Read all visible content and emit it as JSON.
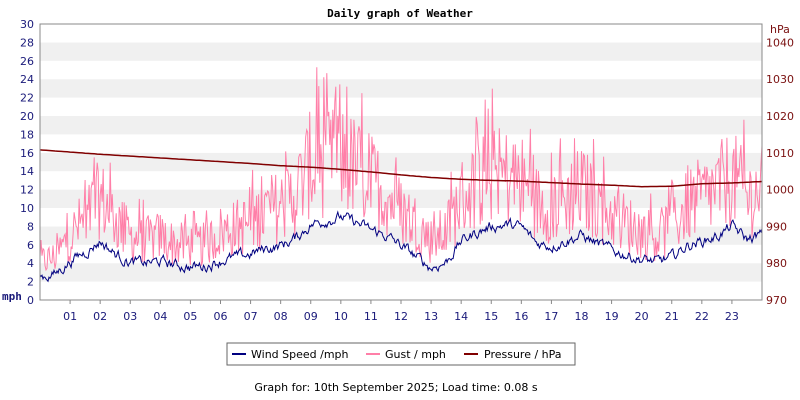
{
  "chart_data": {
    "type": "line",
    "title": "Daily graph of Weather",
    "left_axis": {
      "unit": "mph",
      "ylim": [
        0,
        30
      ],
      "ticks": [
        0,
        2,
        4,
        6,
        8,
        10,
        12,
        14,
        16,
        18,
        20,
        22,
        24,
        26,
        28,
        30
      ]
    },
    "right_axis": {
      "unit": "hPa",
      "ylim": [
        970,
        1045
      ],
      "ticks": [
        970,
        980,
        990,
        1000,
        1010,
        1020,
        1030,
        1040
      ]
    },
    "x_axis": {
      "range_hours": [
        0,
        24
      ],
      "tick_labels": [
        "01",
        "02",
        "03",
        "04",
        "05",
        "06",
        "07",
        "08",
        "09",
        "10",
        "11",
        "12",
        "13",
        "14",
        "15",
        "16",
        "17",
        "18",
        "19",
        "20",
        "21",
        "22",
        "23"
      ]
    },
    "grid": "horizontal-bands",
    "legend_position": "bottom",
    "series": [
      {
        "name": "Wind Speed /mph",
        "axis": "left",
        "color": "#000080",
        "x_hours": [
          0,
          0.5,
          1,
          1.5,
          2,
          2.5,
          3,
          3.5,
          4,
          4.5,
          5,
          5.5,
          6,
          6.5,
          7,
          7.5,
          8,
          8.5,
          9,
          9.5,
          10,
          10.5,
          11,
          11.5,
          12,
          12.5,
          13,
          13.5,
          14,
          14.5,
          15,
          15.5,
          16,
          16.5,
          17,
          17.5,
          18,
          18.5,
          19,
          19.5,
          20,
          20.5,
          21,
          21.5,
          22,
          22.5,
          23,
          23.5,
          24
        ],
        "values": [
          2.5,
          2.8,
          4.2,
          5.2,
          6.4,
          5.0,
          4.1,
          4.0,
          4.2,
          3.8,
          3.6,
          3.7,
          4.3,
          4.6,
          5.0,
          5.6,
          5.9,
          6.7,
          8.2,
          8.7,
          9.0,
          8.4,
          7.6,
          7.0,
          5.9,
          4.7,
          3.5,
          4.1,
          6.4,
          7.3,
          8.0,
          8.2,
          7.9,
          6.2,
          5.9,
          6.5,
          7.0,
          6.2,
          5.4,
          4.9,
          4.4,
          4.1,
          4.6,
          5.9,
          6.4,
          6.9,
          8.0,
          6.6,
          7.1
        ]
      },
      {
        "name": "Gust / mph",
        "axis": "left",
        "color": "#ff7fa8",
        "x_hours": [
          0,
          0.5,
          1,
          1.5,
          2,
          2.5,
          3,
          3.5,
          4,
          4.5,
          5,
          5.5,
          6,
          6.5,
          7,
          7.5,
          8,
          8.5,
          9,
          9.5,
          10,
          10.5,
          11,
          11.5,
          12,
          12.5,
          13,
          13.5,
          14,
          14.5,
          15,
          15.5,
          16,
          16.5,
          17,
          17.5,
          18,
          18.5,
          19,
          19.5,
          20,
          20.5,
          21,
          21.5,
          22,
          22.5,
          23,
          23.5,
          24
        ],
        "values": [
          4.5,
          5.0,
          7.5,
          9.5,
          12.0,
          9.5,
          7.5,
          7.0,
          7.5,
          6.5,
          6.5,
          6.5,
          8.0,
          8.5,
          9.0,
          10.5,
          11.0,
          12.5,
          16.0,
          16.0,
          16.5,
          15.5,
          14.0,
          12.5,
          10.5,
          9.0,
          7.0,
          8.0,
          12.0,
          13.5,
          15.0,
          14.5,
          14.0,
          11.5,
          11.0,
          12.0,
          13.0,
          11.5,
          10.0,
          9.0,
          8.0,
          7.5,
          8.5,
          11.0,
          12.0,
          13.0,
          14.5,
          12.0,
          13.0
        ],
        "peaks": [
          {
            "x_hours": 1.8,
            "value": 15.5
          },
          {
            "x_hours": 9.2,
            "value": 25.3
          },
          {
            "x_hours": 9.8,
            "value": 21.5
          },
          {
            "x_hours": 10.2,
            "value": 23.2
          },
          {
            "x_hours": 14.9,
            "value": 20.8
          },
          {
            "x_hours": 16.3,
            "value": 18.6
          },
          {
            "x_hours": 18.4,
            "value": 17.5
          },
          {
            "x_hours": 23.4,
            "value": 19.6
          }
        ]
      },
      {
        "name": "Pressure / hPa",
        "axis": "right",
        "color": "#800000",
        "x_hours": [
          0,
          1,
          2,
          3,
          4,
          5,
          6,
          7,
          8,
          9,
          10,
          11,
          12,
          13,
          14,
          15,
          16,
          17,
          18,
          19,
          20,
          21,
          22,
          23,
          24
        ],
        "values": [
          1010.8,
          1010.2,
          1009.6,
          1009.1,
          1008.6,
          1008.1,
          1007.6,
          1007.1,
          1006.5,
          1006.1,
          1005.5,
          1004.8,
          1004.0,
          1003.3,
          1002.8,
          1002.5,
          1002.3,
          1001.9,
          1001.5,
          1001.2,
          1000.8,
          1000.9,
          1001.6,
          1001.8,
          1002.2
        ]
      }
    ]
  },
  "legend": [
    {
      "label": "Wind Speed /mph",
      "color": "#000080"
    },
    {
      "label": "Gust / mph",
      "color": "#ff7fa8"
    },
    {
      "label": "Pressure / hPa",
      "color": "#800000"
    }
  ],
  "footer": "Graph for: 10th September 2025; Load time: 0.08 s"
}
